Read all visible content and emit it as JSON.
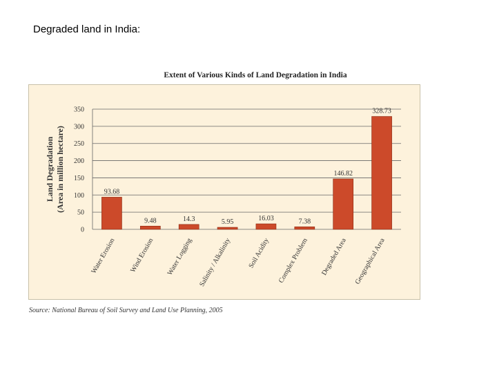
{
  "slide": {
    "title": "Degraded land in India:"
  },
  "source": "Source: National Bureau of Soil Survey and Land Use Planning, 2005",
  "colors": {
    "panel_background": "#fdf2dc",
    "bar_fill": "#cc4a2a",
    "bar_stroke": "#8a2a12",
    "grid": "#666666"
  },
  "chart_data": {
    "type": "bar",
    "title": "Extent of Various Kinds of Land Degradation in India",
    "ylabel_line1": "Land Degradation",
    "ylabel_line2": "(Area in million hectare)",
    "xlabel": "",
    "ylim": [
      0,
      350
    ],
    "yticks": [
      0,
      50,
      100,
      150,
      200,
      250,
      300,
      350
    ],
    "grid": true,
    "legend": "none",
    "categories": [
      "Water Erosion",
      "Wind Erosion",
      "Water Logging",
      "Salinity / Alkalinity",
      "Soil Acidity",
      "Complex Problem",
      "Degraded Area",
      "Geographical Area"
    ],
    "values": [
      93.68,
      9.48,
      14.3,
      5.95,
      16.03,
      7.38,
      146.82,
      328.73
    ],
    "value_labels": [
      "93.68",
      "9.48",
      "14.3",
      "5.95",
      "16.03",
      "7.38",
      "146.82",
      "328.73"
    ]
  }
}
